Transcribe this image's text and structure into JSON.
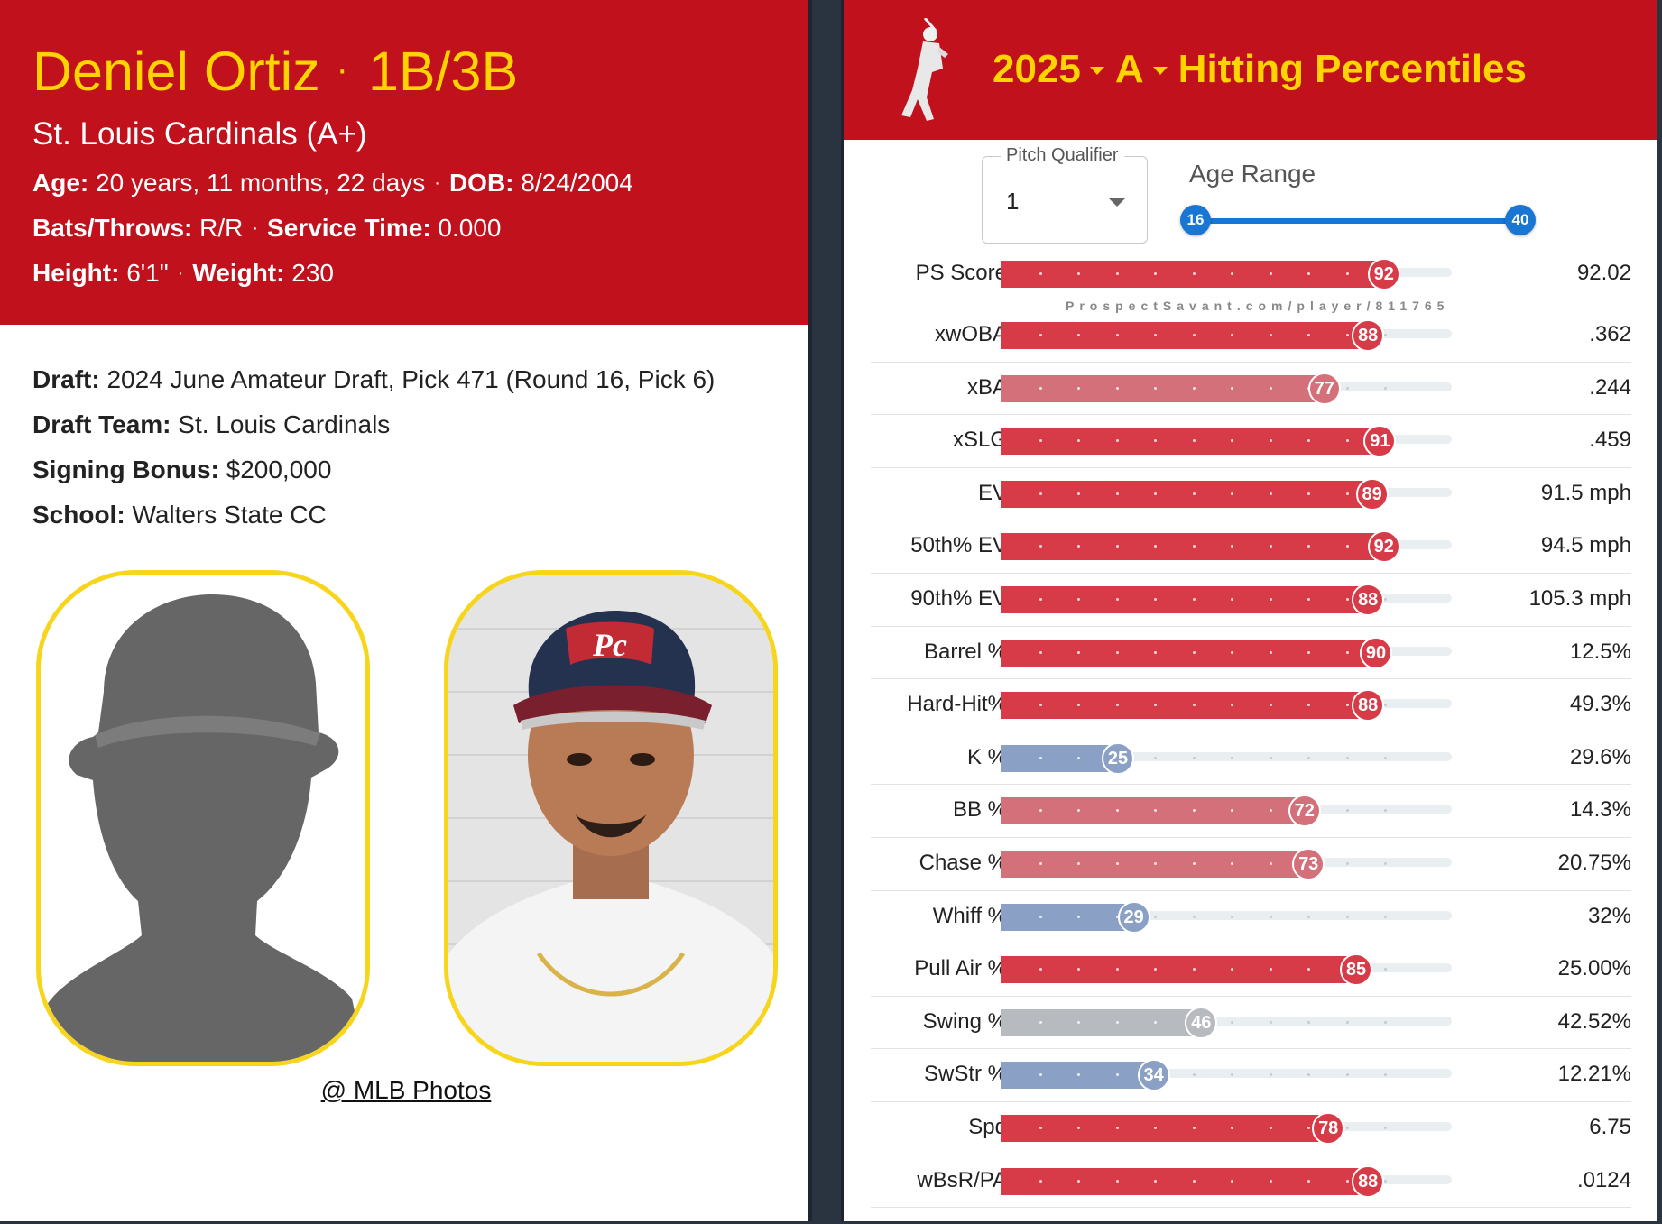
{
  "player": {
    "name": "Deniel Ortiz",
    "separator": "·",
    "position": "1B/3B",
    "team_line": "St. Louis Cardinals (A+)",
    "age_label": "Age:",
    "age_value": "20 years, 11 months, 22 days",
    "dob_label": "DOB:",
    "dob_value": "8/24/2004",
    "bats_label": "Bats/Throws:",
    "bats_value": "R/R",
    "service_label": "Service Time:",
    "service_value": "0.000",
    "height_label": "Height:",
    "height_value": "6'1\"",
    "weight_label": "Weight:",
    "weight_value": "230",
    "draft_label": "Draft:",
    "draft_value": "2024 June Amateur Draft, Pick 471 (Round 16, Pick 6)",
    "draft_team_label": "Draft Team:",
    "draft_team_value": "St. Louis Cardinals",
    "bonus_label": "Signing Bonus:",
    "bonus_value": "$200,000",
    "school_label": "School:",
    "school_value": "Walters State CC",
    "photo_credit": "@ MLB Photos"
  },
  "percentiles_header": {
    "year": "2025",
    "level": "A",
    "title": "Hitting Percentiles",
    "pitch_qualifier_label": "Pitch Qualifier",
    "pitch_qualifier_value": "1",
    "age_range_label": "Age Range",
    "age_min": "16",
    "age_max": "40",
    "watermark": "ProspectSavant.com/player/811765"
  },
  "colors": {
    "brand_red": "#c0111c",
    "brand_yellow": "#ffd400",
    "high": "#d63b47",
    "mid_high": "#d4707a",
    "neutral": "#b7babf",
    "low": "#8aa0c4",
    "slider_blue": "#1976d2"
  },
  "metrics": [
    {
      "label": "PS Score",
      "pct": 92,
      "value": "92.02",
      "tone": "high"
    },
    {
      "label": "xwOBA",
      "pct": 88,
      "value": ".362",
      "tone": "high"
    },
    {
      "label": "xBA",
      "pct": 77,
      "value": ".244",
      "tone": "mid_high"
    },
    {
      "label": "xSLG",
      "pct": 91,
      "value": ".459",
      "tone": "high"
    },
    {
      "label": "EV",
      "pct": 89,
      "value": "91.5 mph",
      "tone": "high"
    },
    {
      "label": "50th% EV",
      "pct": 92,
      "value": "94.5 mph",
      "tone": "high"
    },
    {
      "label": "90th% EV",
      "pct": 88,
      "value": "105.3 mph",
      "tone": "high"
    },
    {
      "label": "Barrel %",
      "pct": 90,
      "value": "12.5%",
      "tone": "high"
    },
    {
      "label": "Hard-Hit%",
      "pct": 88,
      "value": "49.3%",
      "tone": "high"
    },
    {
      "label": "K %",
      "pct": 25,
      "value": "29.6%",
      "tone": "low"
    },
    {
      "label": "BB %",
      "pct": 72,
      "value": "14.3%",
      "tone": "mid_high"
    },
    {
      "label": "Chase %",
      "pct": 73,
      "value": "20.75%",
      "tone": "mid_high"
    },
    {
      "label": "Whiff %",
      "pct": 29,
      "value": "32%",
      "tone": "low"
    },
    {
      "label": "Pull Air %",
      "pct": 85,
      "value": "25.00%",
      "tone": "high"
    },
    {
      "label": "Swing %",
      "pct": 46,
      "value": "42.52%",
      "tone": "neutral"
    },
    {
      "label": "SwStr %",
      "pct": 34,
      "value": "12.21%",
      "tone": "low"
    },
    {
      "label": "Spd",
      "pct": 78,
      "value": "6.75",
      "tone": "high"
    },
    {
      "label": "wBsR/PA",
      "pct": 88,
      "value": ".0124",
      "tone": "high"
    }
  ]
}
